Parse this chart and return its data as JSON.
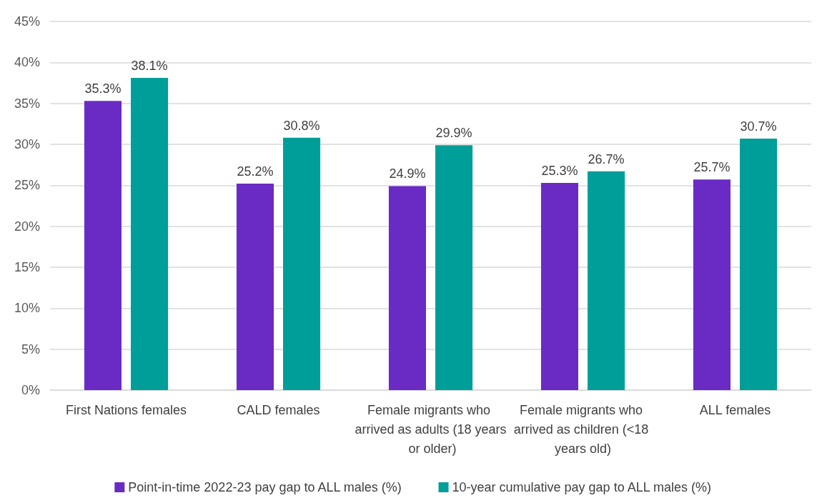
{
  "chart_data": {
    "type": "bar",
    "categories": [
      "First Nations females",
      "CALD females",
      "Female migrants who arrived as adults (18 years or older)",
      "Female migrants who arrived as children (<18 years old)",
      "ALL females"
    ],
    "series": [
      {
        "name": "Point-in-time 2022-23 pay gap to ALL males (%)",
        "color": "#6a2bc4",
        "values": [
          35.3,
          25.2,
          24.9,
          25.3,
          25.7
        ],
        "value_labels": [
          "35.3%",
          "25.2%",
          "24.9%",
          "25.3%",
          "25.7%"
        ]
      },
      {
        "name": "10-year cumulative pay gap to ALL males (%)",
        "color": "#009e99",
        "values": [
          38.1,
          30.8,
          29.9,
          26.7,
          30.7
        ],
        "value_labels": [
          "38.1%",
          "30.8%",
          "29.9%",
          "26.7%",
          "30.7%"
        ]
      }
    ],
    "ylim": [
      0,
      45
    ],
    "yticks": [
      {
        "value": 0,
        "label": "0%"
      },
      {
        "value": 5,
        "label": "5%"
      },
      {
        "value": 10,
        "label": "10%"
      },
      {
        "value": 15,
        "label": "15%"
      },
      {
        "value": 20,
        "label": "20%"
      },
      {
        "value": 25,
        "label": "25%"
      },
      {
        "value": 30,
        "label": "30%"
      },
      {
        "value": 35,
        "label": "35%"
      },
      {
        "value": 40,
        "label": "40%"
      },
      {
        "value": 45,
        "label": "45%"
      }
    ],
    "grid": "y",
    "legend": "bottom"
  }
}
